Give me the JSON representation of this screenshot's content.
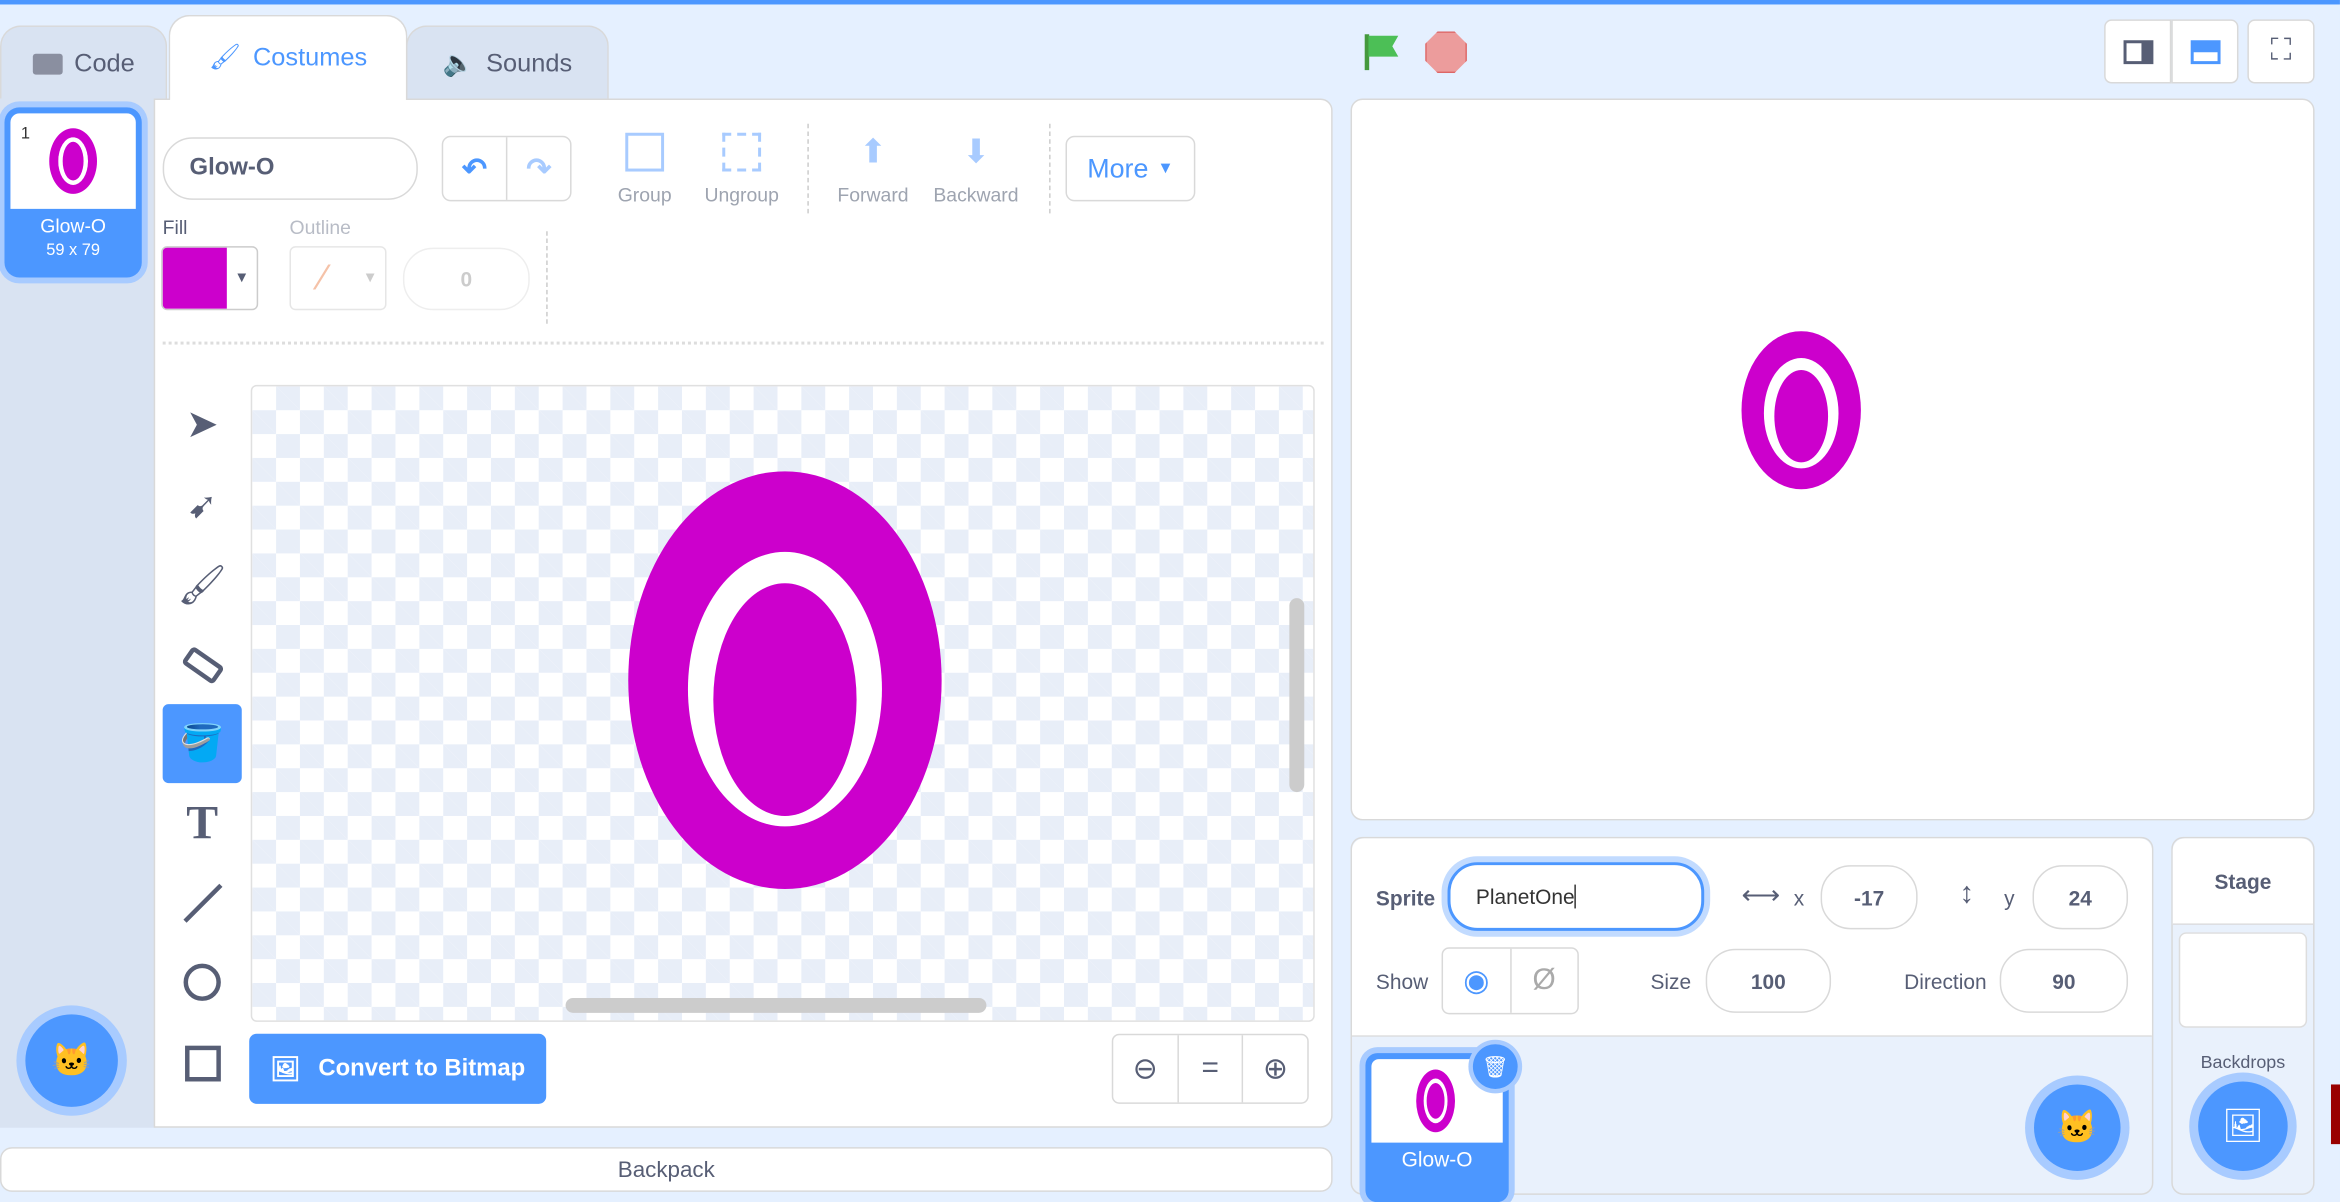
{
  "tabs": [
    {
      "label": "Code",
      "icon": "code-icon"
    },
    {
      "label": "Costumes",
      "icon": "brush-icon",
      "active": true
    },
    {
      "label": "Sounds",
      "icon": "speaker-icon"
    }
  ],
  "costume_list": [
    {
      "number": "1",
      "name": "Glow-O",
      "size": "59 x 79"
    }
  ],
  "editor": {
    "costume_name": "Glow-O",
    "group": "Group",
    "ungroup": "Ungroup",
    "forward": "Forward",
    "backward": "Backward",
    "more": "More",
    "fill_label": "Fill",
    "fill_color": "#cc00cc",
    "outline_label": "Outline",
    "outline_width": "0",
    "convert": "Convert to Bitmap"
  },
  "tools": [
    "select",
    "reshape",
    "brush",
    "eraser",
    "fill",
    "text",
    "line",
    "circle",
    "rectangle"
  ],
  "stage_controls": {
    "flag": "green-flag-icon",
    "stop": "stop-icon"
  },
  "sprite_info": {
    "sprite_label": "Sprite",
    "sprite_name": "PlanetOne",
    "x_label": "x",
    "x": "-17",
    "y_label": "y",
    "y": "24",
    "show_label": "Show",
    "size_label": "Size",
    "size": "100",
    "direction_label": "Direction",
    "direction": "90"
  },
  "sprites": [
    {
      "name": "Glow-O"
    }
  ],
  "stage_panel": {
    "title": "Stage",
    "backdrops": "Backdrops"
  },
  "backpack": "Backpack",
  "colors": {
    "accent": "#4c97ff",
    "shape": "#cc00cc"
  }
}
